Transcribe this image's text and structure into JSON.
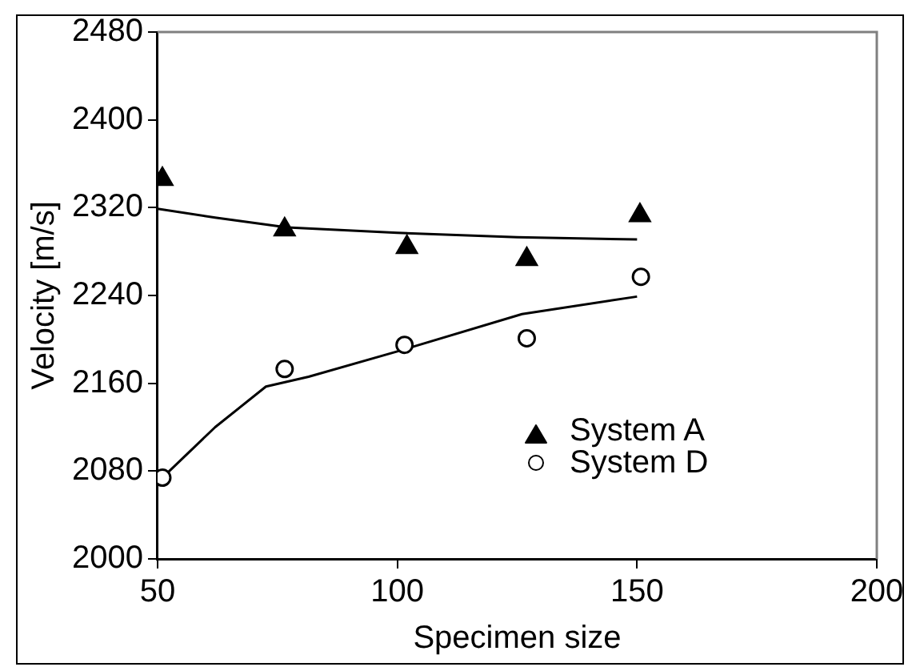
{
  "chart_data": {
    "type": "scatter",
    "xlabel": "Specimen size",
    "ylabel": "Velocity [m/s]",
    "xlim": [
      50,
      200
    ],
    "xticks": [
      50,
      100,
      150,
      200
    ],
    "ylim": [
      2000,
      2480
    ],
    "yticks": [
      2000,
      2080,
      2160,
      2240,
      2320,
      2400,
      2480
    ],
    "grid": false,
    "legend": "bottom right",
    "series": [
      {
        "name": "System A",
        "type": "scatter",
        "marker": "triangle",
        "color": "#000000",
        "x": [
          51,
          76.5,
          102,
          127,
          150.6
        ],
        "values": [
          2346,
          2300,
          2284,
          2273,
          2313
        ]
      },
      {
        "name": "System D",
        "type": "scatter",
        "marker": "circle",
        "color": "#000000",
        "x": [
          51,
          76.5,
          101.5,
          127,
          150.8
        ],
        "values": [
          2074,
          2173,
          2195,
          2201,
          2257
        ]
      },
      {
        "type": "line",
        "marker": "none",
        "line_style": "solid",
        "color": "#000000",
        "x": [
          50,
          62,
          77,
          100,
          125,
          150
        ],
        "values": [
          2319,
          2311,
          2302,
          2297,
          2293,
          2291
        ]
      },
      {
        "type": "line",
        "marker": "none",
        "line_style": "solid",
        "color": "#000000",
        "x": [
          51,
          62,
          72.6,
          81.5,
          100,
          126,
          150
        ],
        "values": [
          2074,
          2120,
          2157,
          2166,
          2189,
          2223,
          2239
        ]
      }
    ]
  }
}
